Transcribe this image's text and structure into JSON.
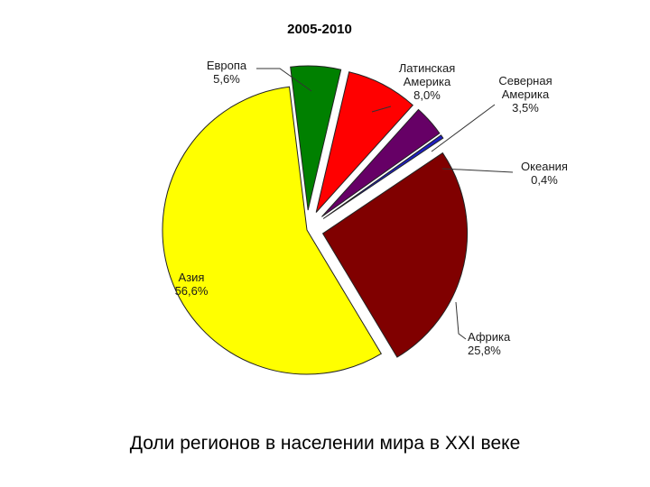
{
  "caption": "Доли регионов в населении мира в XXI веке",
  "chart_data": {
    "type": "pie",
    "title": "2005-2010",
    "unit": "%",
    "slices": [
      {
        "name": "Европа",
        "value": 5.6,
        "label": "5,6%",
        "color": "#008000"
      },
      {
        "name": "Латинская Америка",
        "value": 8.0,
        "label": "8,0%",
        "color": "#ff0000"
      },
      {
        "name": "Северная Америка",
        "value": 3.5,
        "label": "3,5%",
        "color": "#660066"
      },
      {
        "name": "Океания",
        "value": 0.4,
        "label": "0,4%",
        "color": "#1f1fbf"
      },
      {
        "name": "Африка",
        "value": 25.8,
        "label": "25,8%",
        "color": "#800000"
      },
      {
        "name": "Азия",
        "value": 56.6,
        "label": "56,6%",
        "color": "#ffff00"
      }
    ],
    "label_lines": [
      [
        "Европа",
        "5,6%"
      ],
      [
        "Латинская",
        "Америка",
        "8,0%"
      ],
      [
        "Северная",
        "Америка",
        "3,5%"
      ],
      [
        "Океания",
        "0,4%"
      ],
      [
        "Африка",
        "25,8%"
      ],
      [
        "Азия",
        "56,6%"
      ]
    ]
  }
}
